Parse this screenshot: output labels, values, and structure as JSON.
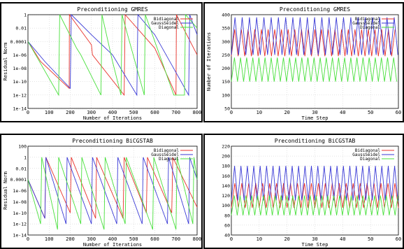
{
  "chart_data": [
    {
      "type": "line",
      "title": "Preconditioning GMRES",
      "xlabel": "Number of Iterations",
      "ylabel": "Residual Norm",
      "yscale": "log",
      "xlim": [
        0,
        800
      ],
      "ylim_exp": [
        -14,
        0
      ],
      "x_ticks": [
        "0",
        "100",
        "200",
        "300",
        "400",
        "500",
        "600",
        "700",
        "800"
      ],
      "y_ticks": [
        "1e-14",
        "1e-12",
        "1e-10",
        "1e-08",
        "1e-06",
        "0.0001",
        "0.01",
        "1"
      ],
      "legend_position": "top-right",
      "grid": true,
      "series": [
        {
          "name": "Bidiagonal",
          "color": "#e8322b",
          "x": [
            0,
            60,
            195,
            196,
            300,
            305,
            455,
            460,
            600,
            700,
            702,
            800
          ],
          "y_exp": [
            -4,
            -7,
            -11,
            0,
            -4.5,
            -6,
            -12,
            0,
            -5,
            -12,
            0,
            -6
          ]
        },
        {
          "name": "GaussSeidel",
          "color": "#3a3ad6",
          "x": [
            0,
            80,
            200,
            205,
            300,
            400,
            515,
            520,
            600,
            760,
            765,
            800
          ],
          "y_exp": [
            -4,
            -7,
            -11,
            0,
            -3,
            -6,
            -12,
            0,
            -3,
            -12,
            0,
            -3
          ]
        },
        {
          "name": "Diagonal",
          "color": "#49e03c",
          "x": [
            0,
            145,
            150,
            230,
            250,
            345,
            350,
            400,
            440,
            445,
            550,
            555,
            690,
            740,
            745,
            800
          ],
          "y_exp": [
            -4,
            -12,
            0,
            -5,
            -6,
            -12,
            0,
            -7,
            -12,
            0,
            -12,
            0,
            -12,
            -12,
            0,
            -2
          ]
        }
      ]
    },
    {
      "type": "line",
      "title": "Preconditioning GMRES",
      "xlabel": "Time Step",
      "ylabel": "Number of Iterations",
      "xlim": [
        0,
        60
      ],
      "ylim": [
        50,
        400
      ],
      "x_ticks": [
        "0",
        "10",
        "20",
        "30",
        "40",
        "50",
        "60"
      ],
      "y_ticks": [
        "50",
        "100",
        "150",
        "200",
        "250",
        "300",
        "350",
        "400"
      ],
      "legend_position": "top-right",
      "grid": true,
      "series": [
        {
          "name": "Bidiagonal",
          "color": "#e8322b",
          "center": 295,
          "amp": 50,
          "period": 2.4
        },
        {
          "name": "GaussSeidel",
          "color": "#3a3ad6",
          "center": 320,
          "amp": 70,
          "period": 2.6
        },
        {
          "name": "Diagonal",
          "color": "#49e03c",
          "center": 195,
          "amp": 45,
          "period": 2.2
        }
      ]
    },
    {
      "type": "line",
      "title": "Preconditioning BiCGSTAB",
      "xlabel": "Number of Iterations",
      "ylabel": "Residual Norm",
      "yscale": "log",
      "xlim": [
        0,
        800
      ],
      "ylim_exp": [
        -14,
        2
      ],
      "x_ticks": [
        "0",
        "100",
        "200",
        "300",
        "400",
        "500",
        "600",
        "700",
        "800"
      ],
      "y_ticks": [
        "1e-14",
        "1e-12",
        "1e-10",
        "1e-08",
        "1e-06",
        "0.0001",
        "0.01",
        "1",
        "100"
      ],
      "legend_position": "top-right",
      "grid": true,
      "series": [
        {
          "name": "Bidiagonal",
          "color": "#e8322b",
          "x": [
            0,
            80,
            85,
            200,
            205,
            320,
            325,
            450,
            455,
            560,
            565,
            680,
            685,
            800
          ],
          "y_exp": [
            -4,
            -11,
            0,
            -10,
            0,
            -11,
            0,
            -11,
            0,
            -10,
            0,
            -10,
            0,
            -9
          ]
        },
        {
          "name": "GaussSeidel",
          "color": "#3a3ad6",
          "x": [
            0,
            80,
            85,
            180,
            185,
            300,
            305,
            420,
            425,
            540,
            545,
            660,
            665,
            760,
            765,
            800
          ],
          "y_exp": [
            -4,
            -11,
            0,
            -12,
            0,
            -12,
            0,
            -12,
            0,
            -12,
            0,
            -12,
            0,
            -12,
            0,
            -4
          ]
        },
        {
          "name": "Diagonal",
          "color": "#49e03c",
          "x": [
            0,
            60,
            65,
            140,
            145,
            250,
            255,
            360,
            365,
            460,
            465,
            590,
            595,
            700,
            705,
            780,
            785,
            800
          ],
          "y_exp": [
            -4,
            -12,
            0,
            -13,
            0,
            -12,
            0,
            -13,
            0,
            -12,
            0,
            -13,
            0,
            -13,
            0,
            -12,
            0,
            -4
          ]
        }
      ]
    },
    {
      "type": "line",
      "title": "Preconditioning BiCGSTAB",
      "xlabel": "Time Step",
      "ylabel": "",
      "xlim": [
        0,
        60
      ],
      "ylim": [
        40,
        220
      ],
      "x_ticks": [
        "0",
        "10",
        "20",
        "30",
        "40",
        "50",
        "60"
      ],
      "y_ticks": [
        "40",
        "60",
        "80",
        "100",
        "120",
        "140",
        "160",
        "180",
        "200",
        "220"
      ],
      "legend_position": "top-right",
      "grid": true,
      "series": [
        {
          "name": "Bidiagonal",
          "color": "#e8322b",
          "center": 120,
          "amp": 25,
          "period": 2.5
        },
        {
          "name": "GaussSeidel",
          "color": "#3a3ad6",
          "center": 145,
          "amp": 35,
          "period": 2.3
        },
        {
          "name": "Diagonal",
          "color": "#49e03c",
          "center": 100,
          "amp": 20,
          "period": 2.1
        }
      ]
    }
  ]
}
